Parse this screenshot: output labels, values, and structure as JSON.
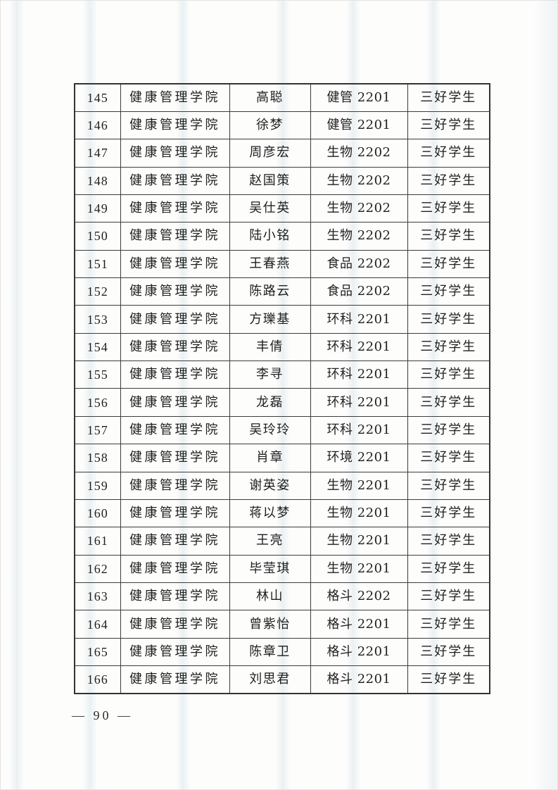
{
  "page": {
    "background_color": "#fdfdfc",
    "table_border_color": "#3c3c3c",
    "text_color": "#1f1f1f",
    "footer": {
      "display": "— 90 —",
      "page_number": "90"
    }
  },
  "table": {
    "column_keys": [
      "no",
      "college",
      "name",
      "class",
      "award"
    ],
    "rows": [
      [
        "145",
        "健康管理学院",
        "高聪",
        "健管 2201",
        "三好学生"
      ],
      [
        "146",
        "健康管理学院",
        "徐梦",
        "健管 2201",
        "三好学生"
      ],
      [
        "147",
        "健康管理学院",
        "周彦宏",
        "生物 2202",
        "三好学生"
      ],
      [
        "148",
        "健康管理学院",
        "赵国策",
        "生物 2202",
        "三好学生"
      ],
      [
        "149",
        "健康管理学院",
        "吴仕英",
        "生物 2202",
        "三好学生"
      ],
      [
        "150",
        "健康管理学院",
        "陆小铭",
        "生物 2202",
        "三好学生"
      ],
      [
        "151",
        "健康管理学院",
        "王春燕",
        "食品 2202",
        "三好学生"
      ],
      [
        "152",
        "健康管理学院",
        "陈路云",
        "食品 2202",
        "三好学生"
      ],
      [
        "153",
        "健康管理学院",
        "方瓅基",
        "环科 2201",
        "三好学生"
      ],
      [
        "154",
        "健康管理学院",
        "丰倩",
        "环科 2201",
        "三好学生"
      ],
      [
        "155",
        "健康管理学院",
        "李寻",
        "环科 2201",
        "三好学生"
      ],
      [
        "156",
        "健康管理学院",
        "龙磊",
        "环科 2201",
        "三好学生"
      ],
      [
        "157",
        "健康管理学院",
        "吴玲玲",
        "环科 2201",
        "三好学生"
      ],
      [
        "158",
        "健康管理学院",
        "肖章",
        "环境 2201",
        "三好学生"
      ],
      [
        "159",
        "健康管理学院",
        "谢英姿",
        "生物 2201",
        "三好学生"
      ],
      [
        "160",
        "健康管理学院",
        "蒋以梦",
        "生物 2201",
        "三好学生"
      ],
      [
        "161",
        "健康管理学院",
        "王亮",
        "生物 2201",
        "三好学生"
      ],
      [
        "162",
        "健康管理学院",
        "毕莹琪",
        "生物 2201",
        "三好学生"
      ],
      [
        "163",
        "健康管理学院",
        "林山",
        "格斗 2202",
        "三好学生"
      ],
      [
        "164",
        "健康管理学院",
        "曾紫怡",
        "格斗 2201",
        "三好学生"
      ],
      [
        "165",
        "健康管理学院",
        "陈章卫",
        "格斗 2201",
        "三好学生"
      ],
      [
        "166",
        "健康管理学院",
        "刘思君",
        "格斗 2201",
        "三好学生"
      ]
    ]
  }
}
